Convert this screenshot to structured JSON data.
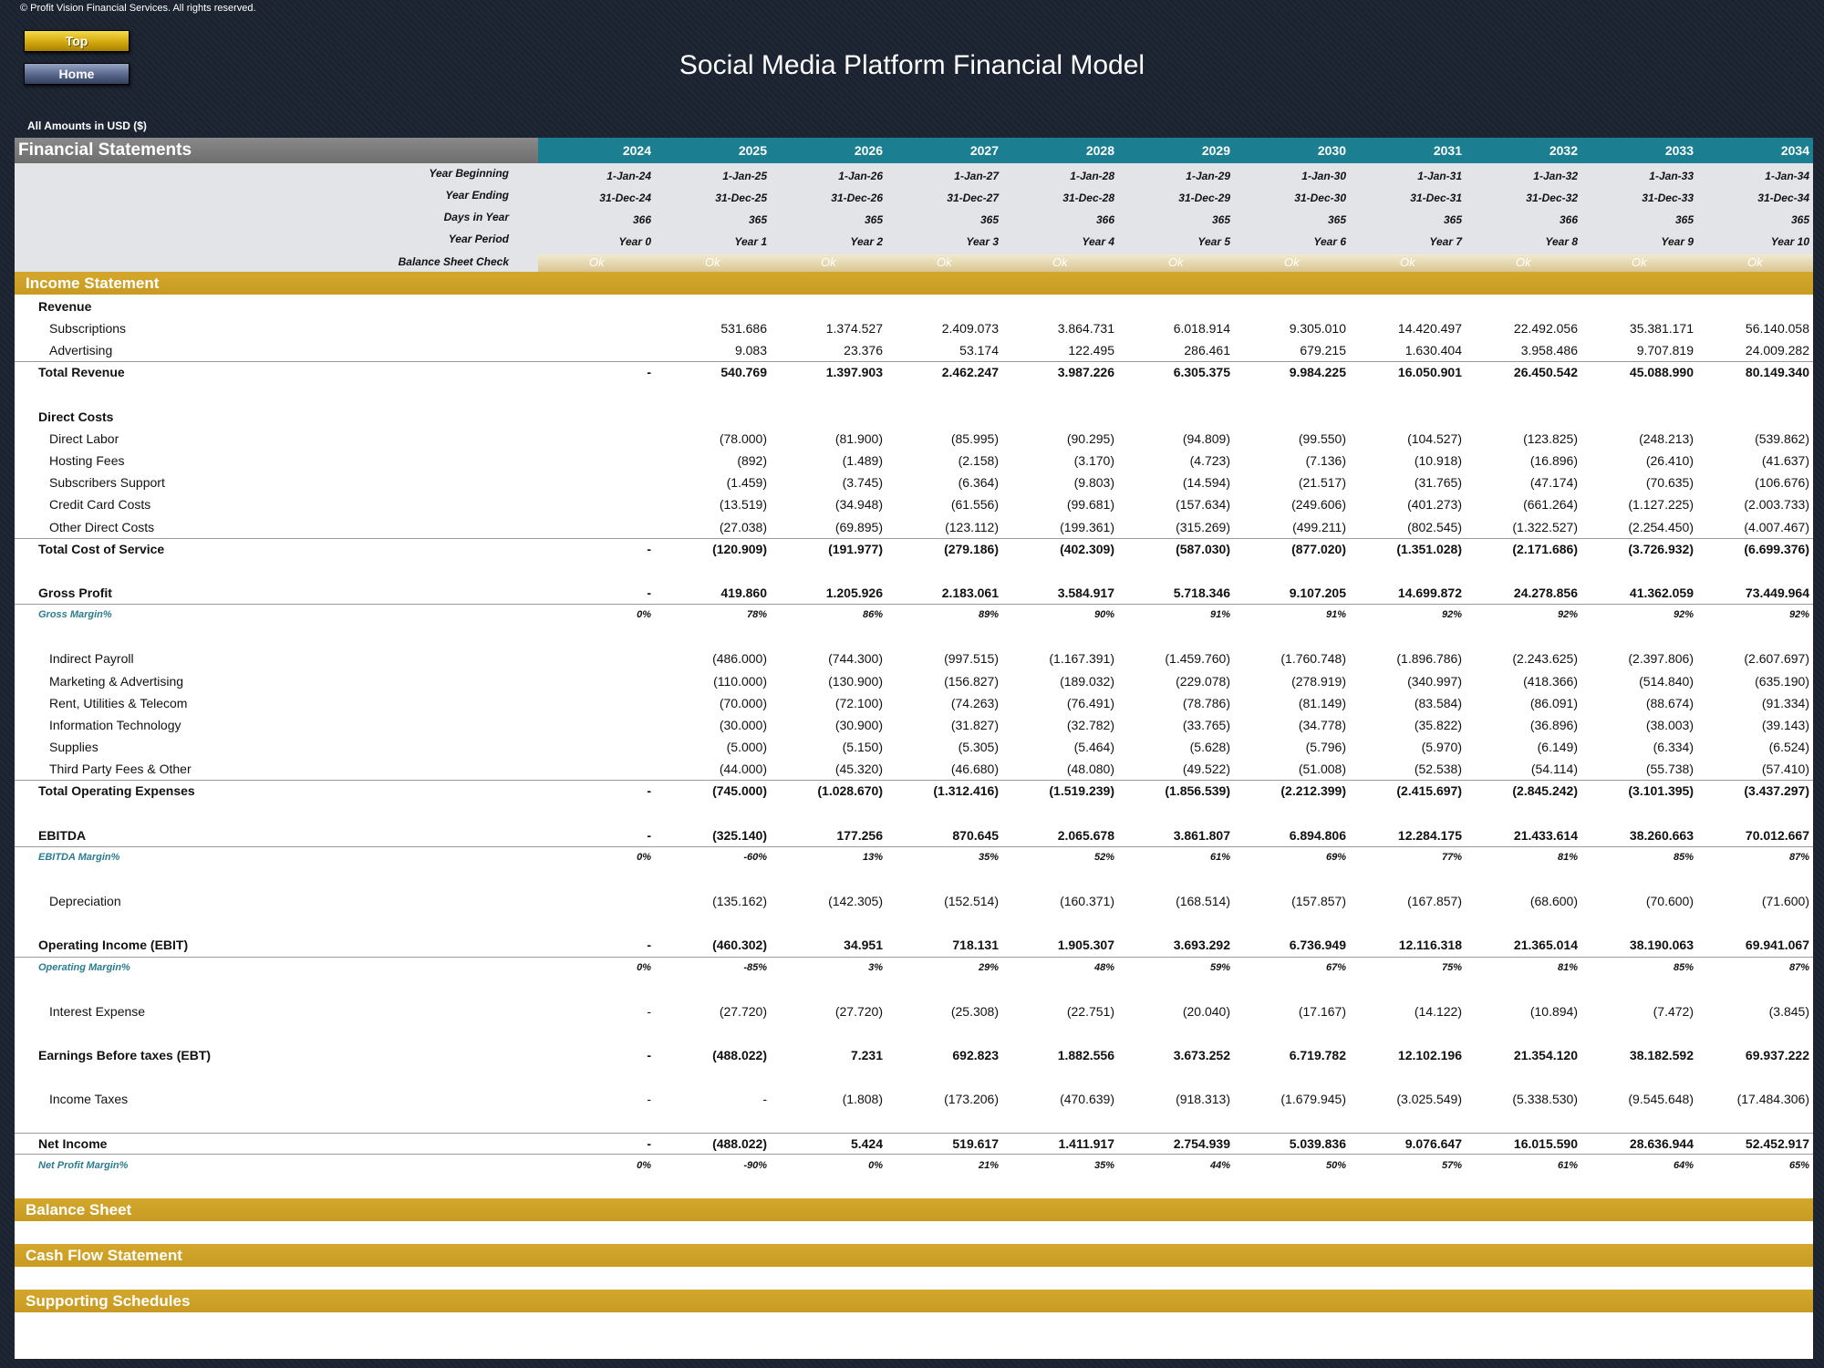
{
  "copyright": "© Profit Vision Financial Services. All rights reserved.",
  "buttons": {
    "top": "Top",
    "home": "Home"
  },
  "title": "Social Media Platform Financial Model",
  "amounts_label": "All Amounts in  USD ($)",
  "statements_title": "Financial Statements",
  "years": [
    "2024",
    "2025",
    "2026",
    "2027",
    "2028",
    "2029",
    "2030",
    "2031",
    "2032",
    "2033",
    "2034"
  ],
  "info_rows": [
    {
      "label": "Year Beginning",
      "values": [
        "1-Jan-24",
        "1-Jan-25",
        "1-Jan-26",
        "1-Jan-27",
        "1-Jan-28",
        "1-Jan-29",
        "1-Jan-30",
        "1-Jan-31",
        "1-Jan-32",
        "1-Jan-33",
        "1-Jan-34"
      ]
    },
    {
      "label": "Year Ending",
      "values": [
        "31-Dec-24",
        "31-Dec-25",
        "31-Dec-26",
        "31-Dec-27",
        "31-Dec-28",
        "31-Dec-29",
        "31-Dec-30",
        "31-Dec-31",
        "31-Dec-32",
        "31-Dec-33",
        "31-Dec-34"
      ]
    },
    {
      "label": "Days in Year",
      "values": [
        "366",
        "365",
        "365",
        "365",
        "366",
        "365",
        "365",
        "365",
        "366",
        "365",
        "365"
      ]
    },
    {
      "label": "Year Period",
      "values": [
        "Year 0",
        "Year 1",
        "Year 2",
        "Year 3",
        "Year 4",
        "Year 5",
        "Year 6",
        "Year 7",
        "Year 8",
        "Year 9",
        "Year 10"
      ]
    }
  ],
  "balance_check": {
    "label": "Balance Sheet Check",
    "values": [
      "Ok",
      "Ok",
      "Ok",
      "Ok",
      "Ok",
      "Ok",
      "Ok",
      "Ok",
      "Ok",
      "Ok",
      "Ok"
    ]
  },
  "income_statement": {
    "title": "Income Statement",
    "rows": [
      {
        "label": "Revenue",
        "kind": "heading",
        "values": []
      },
      {
        "label": "Subscriptions",
        "kind": "item",
        "values": [
          "",
          "531.686",
          "1.374.527",
          "2.409.073",
          "3.864.731",
          "6.018.914",
          "9.305.010",
          "14.420.497",
          "22.492.056",
          "35.381.171",
          "56.140.058"
        ]
      },
      {
        "label": "Advertising",
        "kind": "item",
        "values": [
          "",
          "9.083",
          "23.376",
          "53.174",
          "122.495",
          "286.461",
          "679.215",
          "1.630.404",
          "3.958.486",
          "9.707.819",
          "24.009.282"
        ]
      },
      {
        "label": "Total Revenue",
        "kind": "total",
        "rule_above": true,
        "values": [
          "-",
          "540.769",
          "1.397.903",
          "2.462.247",
          "3.987.226",
          "6.305.375",
          "9.984.225",
          "16.050.901",
          "26.450.542",
          "45.088.990",
          "80.149.340"
        ]
      },
      {
        "label": "",
        "kind": "blank",
        "values": []
      },
      {
        "label": "Direct Costs",
        "kind": "heading",
        "values": []
      },
      {
        "label": "Direct Labor",
        "kind": "item",
        "values": [
          "",
          "(78.000)",
          "(81.900)",
          "(85.995)",
          "(90.295)",
          "(94.809)",
          "(99.550)",
          "(104.527)",
          "(123.825)",
          "(248.213)",
          "(539.862)"
        ]
      },
      {
        "label": "Hosting Fees",
        "kind": "item",
        "values": [
          "",
          "(892)",
          "(1.489)",
          "(2.158)",
          "(3.170)",
          "(4.723)",
          "(7.136)",
          "(10.918)",
          "(16.896)",
          "(26.410)",
          "(41.637)"
        ]
      },
      {
        "label": "Subscribers Support",
        "kind": "item",
        "values": [
          "",
          "(1.459)",
          "(3.745)",
          "(6.364)",
          "(9.803)",
          "(14.594)",
          "(21.517)",
          "(31.765)",
          "(47.174)",
          "(70.635)",
          "(106.676)"
        ]
      },
      {
        "label": "Credit Card Costs",
        "kind": "item",
        "values": [
          "",
          "(13.519)",
          "(34.948)",
          "(61.556)",
          "(99.681)",
          "(157.634)",
          "(249.606)",
          "(401.273)",
          "(661.264)",
          "(1.127.225)",
          "(2.003.733)"
        ]
      },
      {
        "label": "Other Direct Costs",
        "kind": "item",
        "values": [
          "",
          "(27.038)",
          "(69.895)",
          "(123.112)",
          "(199.361)",
          "(315.269)",
          "(499.211)",
          "(802.545)",
          "(1.322.527)",
          "(2.254.450)",
          "(4.007.467)"
        ]
      },
      {
        "label": "Total Cost of Service",
        "kind": "total",
        "rule_above": true,
        "values": [
          "-",
          "(120.909)",
          "(191.977)",
          "(279.186)",
          "(402.309)",
          "(587.030)",
          "(877.020)",
          "(1.351.028)",
          "(2.171.686)",
          "(3.726.932)",
          "(6.699.376)"
        ]
      },
      {
        "label": "",
        "kind": "blank",
        "values": []
      },
      {
        "label": "Gross Profit",
        "kind": "total",
        "values": [
          "-",
          "419.860",
          "1.205.926",
          "2.183.061",
          "3.584.917",
          "5.718.346",
          "9.107.205",
          "14.699.872",
          "24.278.856",
          "41.362.059",
          "73.449.964"
        ]
      },
      {
        "label": "Gross Margin%",
        "kind": "margin",
        "rule_above": true,
        "values": [
          "0%",
          "78%",
          "86%",
          "89%",
          "90%",
          "91%",
          "91%",
          "92%",
          "92%",
          "92%",
          "92%"
        ]
      },
      {
        "label": "",
        "kind": "blank",
        "values": []
      },
      {
        "label": "Indirect Payroll",
        "kind": "item",
        "values": [
          "",
          "(486.000)",
          "(744.300)",
          "(997.515)",
          "(1.167.391)",
          "(1.459.760)",
          "(1.760.748)",
          "(1.896.786)",
          "(2.243.625)",
          "(2.397.806)",
          "(2.607.697)"
        ]
      },
      {
        "label": "Marketing & Advertising",
        "kind": "item",
        "values": [
          "",
          "(110.000)",
          "(130.900)",
          "(156.827)",
          "(189.032)",
          "(229.078)",
          "(278.919)",
          "(340.997)",
          "(418.366)",
          "(514.840)",
          "(635.190)"
        ]
      },
      {
        "label": "Rent, Utilities & Telecom",
        "kind": "item",
        "values": [
          "",
          "(70.000)",
          "(72.100)",
          "(74.263)",
          "(76.491)",
          "(78.786)",
          "(81.149)",
          "(83.584)",
          "(86.091)",
          "(88.674)",
          "(91.334)"
        ]
      },
      {
        "label": "Information Technology",
        "kind": "item",
        "values": [
          "",
          "(30.000)",
          "(30.900)",
          "(31.827)",
          "(32.782)",
          "(33.765)",
          "(34.778)",
          "(35.822)",
          "(36.896)",
          "(38.003)",
          "(39.143)"
        ]
      },
      {
        "label": "Supplies",
        "kind": "item",
        "values": [
          "",
          "(5.000)",
          "(5.150)",
          "(5.305)",
          "(5.464)",
          "(5.628)",
          "(5.796)",
          "(5.970)",
          "(6.149)",
          "(6.334)",
          "(6.524)"
        ]
      },
      {
        "label": "Third Party Fees & Other",
        "kind": "item",
        "values": [
          "",
          "(44.000)",
          "(45.320)",
          "(46.680)",
          "(48.080)",
          "(49.522)",
          "(51.008)",
          "(52.538)",
          "(54.114)",
          "(55.738)",
          "(57.410)"
        ]
      },
      {
        "label": "Total Operating Expenses",
        "kind": "total",
        "rule_above": true,
        "values": [
          "-",
          "(745.000)",
          "(1.028.670)",
          "(1.312.416)",
          "(1.519.239)",
          "(1.856.539)",
          "(2.212.399)",
          "(2.415.697)",
          "(2.845.242)",
          "(3.101.395)",
          "(3.437.297)"
        ]
      },
      {
        "label": "",
        "kind": "blank",
        "values": []
      },
      {
        "label": "EBITDA",
        "kind": "total",
        "values": [
          "-",
          "(325.140)",
          "177.256",
          "870.645",
          "2.065.678",
          "3.861.807",
          "6.894.806",
          "12.284.175",
          "21.433.614",
          "38.260.663",
          "70.012.667"
        ]
      },
      {
        "label": "EBITDA Margin%",
        "kind": "margin",
        "rule_above": true,
        "values": [
          "0%",
          "-60%",
          "13%",
          "35%",
          "52%",
          "61%",
          "69%",
          "77%",
          "81%",
          "85%",
          "87%"
        ]
      },
      {
        "label": "",
        "kind": "blank",
        "values": []
      },
      {
        "label": "Depreciation",
        "kind": "item",
        "values": [
          "",
          "(135.162)",
          "(142.305)",
          "(152.514)",
          "(160.371)",
          "(168.514)",
          "(157.857)",
          "(167.857)",
          "(68.600)",
          "(70.600)",
          "(71.600)"
        ]
      },
      {
        "label": "",
        "kind": "blank",
        "values": []
      },
      {
        "label": "Operating Income (EBIT)",
        "kind": "total",
        "values": [
          "-",
          "(460.302)",
          "34.951",
          "718.131",
          "1.905.307",
          "3.693.292",
          "6.736.949",
          "12.116.318",
          "21.365.014",
          "38.190.063",
          "69.941.067"
        ]
      },
      {
        "label": "Operating Margin%",
        "kind": "margin",
        "rule_above": true,
        "values": [
          "0%",
          "-85%",
          "3%",
          "29%",
          "48%",
          "59%",
          "67%",
          "75%",
          "81%",
          "85%",
          "87%"
        ]
      },
      {
        "label": "",
        "kind": "blank",
        "values": []
      },
      {
        "label": "Interest Expense",
        "kind": "item",
        "values": [
          "-",
          "(27.720)",
          "(27.720)",
          "(25.308)",
          "(22.751)",
          "(20.040)",
          "(17.167)",
          "(14.122)",
          "(10.894)",
          "(7.472)",
          "(3.845)"
        ]
      },
      {
        "label": "",
        "kind": "blank",
        "values": []
      },
      {
        "label": "Earnings Before taxes (EBT)",
        "kind": "total",
        "values": [
          "-",
          "(488.022)",
          "7.231",
          "692.823",
          "1.882.556",
          "3.673.252",
          "6.719.782",
          "12.102.196",
          "21.354.120",
          "38.182.592",
          "69.937.222"
        ]
      },
      {
        "label": "",
        "kind": "blank",
        "values": []
      },
      {
        "label": "Income Taxes",
        "kind": "item",
        "values": [
          "-",
          "-",
          "(1.808)",
          "(173.206)",
          "(470.639)",
          "(918.313)",
          "(1.679.945)",
          "(3.025.549)",
          "(5.338.530)",
          "(9.545.648)",
          "(17.484.306)"
        ]
      },
      {
        "label": "",
        "kind": "blank",
        "values": []
      },
      {
        "label": "Net Income",
        "kind": "total",
        "rule_above": true,
        "rule_below": true,
        "values": [
          "-",
          "(488.022)",
          "5.424",
          "519.617",
          "1.411.917",
          "2.754.939",
          "5.039.836",
          "9.076.647",
          "16.015.590",
          "28.636.944",
          "52.452.917"
        ]
      },
      {
        "label": "Net Profit Margin%",
        "kind": "margin",
        "values": [
          "0%",
          "-90%",
          "0%",
          "21%",
          "35%",
          "44%",
          "50%",
          "57%",
          "61%",
          "64%",
          "65%"
        ]
      }
    ]
  },
  "sections": [
    "Balance Sheet",
    "Cash Flow Statement",
    "Supporting Schedules"
  ],
  "colors": {
    "teal_header": "#1b7f91",
    "gold_bar": "#cfa229",
    "margin_text": "#2a7c8e"
  }
}
